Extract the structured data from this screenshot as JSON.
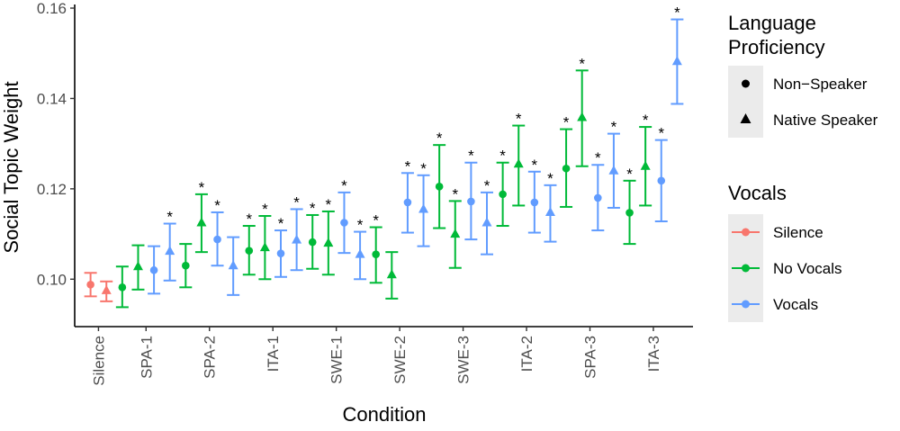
{
  "chart_data": {
    "type": "scatter",
    "ylabel": "Social Topic Weight",
    "xlabel": "Condition",
    "ylim": [
      0.0895,
      0.1608
    ],
    "yticks": [
      "0.10",
      "0.12",
      "0.14",
      "0.16"
    ],
    "ytick_values": [
      0.1,
      0.12,
      0.14,
      0.16
    ],
    "grid": false,
    "legend_placement": "right",
    "categories": [
      "Silence",
      "SPA-1",
      "SPA-2",
      "ITA-1",
      "SWE-1",
      "SWE-2",
      "SWE-3",
      "ITA-2",
      "SPA-3",
      "ITA-3"
    ],
    "colors": {
      "Silence": "#F8766D",
      "No Vocals": "#00BA38",
      "Vocals": "#619CFF"
    },
    "legend": {
      "proficiency_title": "Language\nProficiency",
      "proficiency_title_line1": "Language",
      "proficiency_title_line2": "Proficiency",
      "proficiency_items": [
        {
          "label": "Non−Speaker",
          "shape": "circle"
        },
        {
          "label": "Native Speaker",
          "shape": "triangle"
        }
      ],
      "vocals_title": "Vocals",
      "vocals_items": [
        {
          "label": "Silence",
          "color": "#F8766D"
        },
        {
          "label": "No Vocals",
          "color": "#00BA38"
        },
        {
          "label": "Vocals",
          "color": "#619CFF"
        }
      ]
    },
    "points": [
      {
        "x": 1,
        "vocals": "Silence",
        "shape": "circle",
        "y": 0.0988,
        "lo": 0.0962,
        "hi": 0.1014,
        "sig": false
      },
      {
        "x": 2,
        "vocals": "Silence",
        "shape": "triangle",
        "y": 0.0975,
        "lo": 0.0951,
        "hi": 0.0995,
        "sig": false
      },
      {
        "x": 3,
        "vocals": "No Vocals",
        "shape": "circle",
        "y": 0.0982,
        "lo": 0.0938,
        "hi": 0.1028,
        "sig": false
      },
      {
        "x": 4,
        "vocals": "No Vocals",
        "shape": "triangle",
        "y": 0.1028,
        "lo": 0.0977,
        "hi": 0.1075,
        "sig": false
      },
      {
        "x": 5,
        "vocals": "Vocals",
        "shape": "circle",
        "y": 0.102,
        "lo": 0.0968,
        "hi": 0.1073,
        "sig": false
      },
      {
        "x": 6,
        "vocals": "Vocals",
        "shape": "triangle",
        "y": 0.1062,
        "lo": 0.0997,
        "hi": 0.1123,
        "sig": true
      },
      {
        "x": 7,
        "vocals": "No Vocals",
        "shape": "circle",
        "y": 0.103,
        "lo": 0.0982,
        "hi": 0.1078,
        "sig": false
      },
      {
        "x": 8,
        "vocals": "No Vocals",
        "shape": "triangle",
        "y": 0.1125,
        "lo": 0.106,
        "hi": 0.1188,
        "sig": true
      },
      {
        "x": 9,
        "vocals": "Vocals",
        "shape": "circle",
        "y": 0.1088,
        "lo": 0.103,
        "hi": 0.1148,
        "sig": true
      },
      {
        "x": 10,
        "vocals": "Vocals",
        "shape": "triangle",
        "y": 0.103,
        "lo": 0.0965,
        "hi": 0.1093,
        "sig": false
      },
      {
        "x": 11,
        "vocals": "No Vocals",
        "shape": "circle",
        "y": 0.1063,
        "lo": 0.101,
        "hi": 0.1118,
        "sig": true
      },
      {
        "x": 12,
        "vocals": "No Vocals",
        "shape": "triangle",
        "y": 0.107,
        "lo": 0.1,
        "hi": 0.114,
        "sig": true
      },
      {
        "x": 13,
        "vocals": "Vocals",
        "shape": "circle",
        "y": 0.1057,
        "lo": 0.1005,
        "hi": 0.1108,
        "sig": true
      },
      {
        "x": 14,
        "vocals": "Vocals",
        "shape": "triangle",
        "y": 0.1087,
        "lo": 0.102,
        "hi": 0.1155,
        "sig": true
      },
      {
        "x": 15,
        "vocals": "No Vocals",
        "shape": "circle",
        "y": 0.1082,
        "lo": 0.1023,
        "hi": 0.1142,
        "sig": true
      },
      {
        "x": 16,
        "vocals": "No Vocals",
        "shape": "triangle",
        "y": 0.108,
        "lo": 0.101,
        "hi": 0.115,
        "sig": true
      },
      {
        "x": 17,
        "vocals": "Vocals",
        "shape": "circle",
        "y": 0.1125,
        "lo": 0.1058,
        "hi": 0.1192,
        "sig": true
      },
      {
        "x": 18,
        "vocals": "Vocals",
        "shape": "triangle",
        "y": 0.1055,
        "lo": 0.1,
        "hi": 0.1105,
        "sig": true
      },
      {
        "x": 19,
        "vocals": "No Vocals",
        "shape": "circle",
        "y": 0.1055,
        "lo": 0.0992,
        "hi": 0.1115,
        "sig": true
      },
      {
        "x": 20,
        "vocals": "No Vocals",
        "shape": "triangle",
        "y": 0.101,
        "lo": 0.0957,
        "hi": 0.106,
        "sig": false
      },
      {
        "x": 21,
        "vocals": "Vocals",
        "shape": "circle",
        "y": 0.117,
        "lo": 0.1103,
        "hi": 0.1235,
        "sig": true
      },
      {
        "x": 22,
        "vocals": "Vocals",
        "shape": "triangle",
        "y": 0.1155,
        "lo": 0.1073,
        "hi": 0.123,
        "sig": true
      },
      {
        "x": 23,
        "vocals": "No Vocals",
        "shape": "circle",
        "y": 0.1205,
        "lo": 0.1113,
        "hi": 0.1297,
        "sig": true
      },
      {
        "x": 24,
        "vocals": "No Vocals",
        "shape": "triangle",
        "y": 0.11,
        "lo": 0.1025,
        "hi": 0.1173,
        "sig": true
      },
      {
        "x": 25,
        "vocals": "Vocals",
        "shape": "circle",
        "y": 0.1172,
        "lo": 0.1088,
        "hi": 0.1258,
        "sig": true
      },
      {
        "x": 26,
        "vocals": "Vocals",
        "shape": "triangle",
        "y": 0.1125,
        "lo": 0.1055,
        "hi": 0.1192,
        "sig": true
      },
      {
        "x": 27,
        "vocals": "No Vocals",
        "shape": "circle",
        "y": 0.1188,
        "lo": 0.1118,
        "hi": 0.1258,
        "sig": true
      },
      {
        "x": 28,
        "vocals": "No Vocals",
        "shape": "triangle",
        "y": 0.1255,
        "lo": 0.1163,
        "hi": 0.134,
        "sig": true
      },
      {
        "x": 29,
        "vocals": "Vocals",
        "shape": "circle",
        "y": 0.117,
        "lo": 0.1103,
        "hi": 0.1238,
        "sig": true
      },
      {
        "x": 30,
        "vocals": "Vocals",
        "shape": "triangle",
        "y": 0.1148,
        "lo": 0.1083,
        "hi": 0.1208,
        "sig": true
      },
      {
        "x": 31,
        "vocals": "No Vocals",
        "shape": "circle",
        "y": 0.1245,
        "lo": 0.116,
        "hi": 0.1332,
        "sig": true
      },
      {
        "x": 32,
        "vocals": "No Vocals",
        "shape": "triangle",
        "y": 0.1358,
        "lo": 0.125,
        "hi": 0.1462,
        "sig": true
      },
      {
        "x": 33,
        "vocals": "Vocals",
        "shape": "circle",
        "y": 0.118,
        "lo": 0.1108,
        "hi": 0.1253,
        "sig": true
      },
      {
        "x": 34,
        "vocals": "Vocals",
        "shape": "triangle",
        "y": 0.124,
        "lo": 0.1158,
        "hi": 0.1322,
        "sig": true
      },
      {
        "x": 35,
        "vocals": "No Vocals",
        "shape": "circle",
        "y": 0.1147,
        "lo": 0.1078,
        "hi": 0.1218,
        "sig": true
      },
      {
        "x": 36,
        "vocals": "No Vocals",
        "shape": "triangle",
        "y": 0.125,
        "lo": 0.1163,
        "hi": 0.1337,
        "sig": true
      },
      {
        "x": 37,
        "vocals": "Vocals",
        "shape": "circle",
        "y": 0.1218,
        "lo": 0.1128,
        "hi": 0.1308,
        "sig": true
      },
      {
        "x": 38,
        "vocals": "Vocals",
        "shape": "triangle",
        "y": 0.1482,
        "lo": 0.1388,
        "hi": 0.1575,
        "sig": true
      }
    ],
    "category_positions": [
      1.5,
      4.5,
      8.5,
      12.5,
      16.5,
      20.5,
      24.5,
      28.5,
      32.5,
      36.5
    ],
    "x_range": [
      0,
      39
    ],
    "significance_marker": "*"
  }
}
